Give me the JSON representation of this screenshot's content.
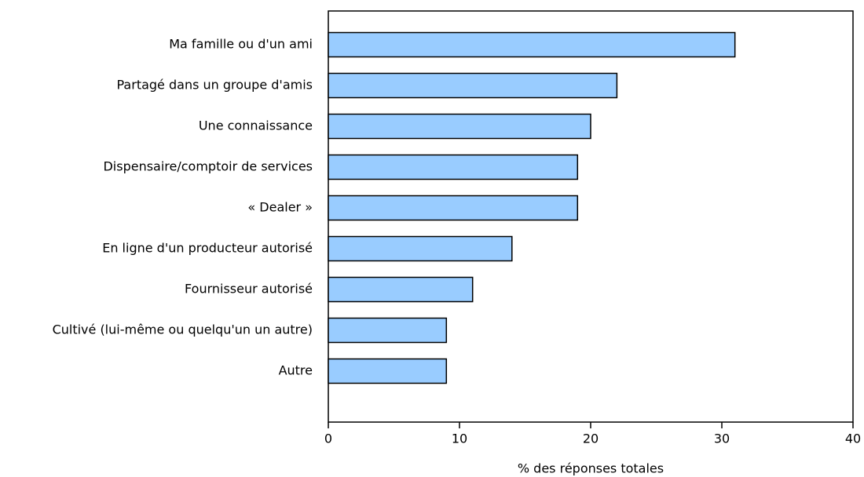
{
  "chart_data": {
    "type": "bar",
    "orientation": "horizontal",
    "categories": [
      "Ma famille ou d'un ami",
      "Partagé dans un groupe d'amis",
      "Une connaissance",
      "Dispensaire/comptoir de services",
      "« Dealer »",
      "En ligne d'un producteur autorisé",
      "Fournisseur autorisé",
      "Cultivé (lui-même ou quelqu'un un autre)",
      "Autre"
    ],
    "values": [
      31,
      22,
      20,
      19,
      19,
      14,
      11,
      9,
      9
    ],
    "color": "#99ccff",
    "xlabel": "% des réponses totales",
    "xlim": [
      0,
      40
    ],
    "xticks": [
      0,
      10,
      20,
      30,
      40
    ],
    "grid": false
  }
}
